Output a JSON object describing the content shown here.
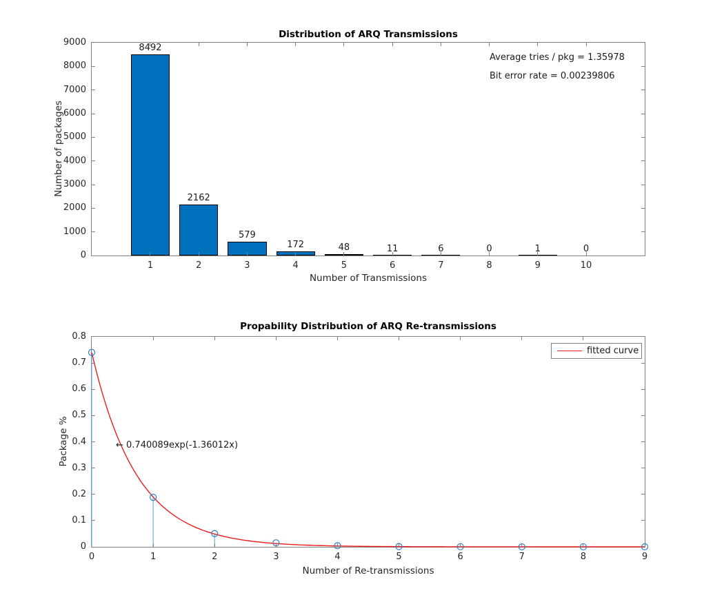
{
  "colors": {
    "bar_fill": "#0072BD",
    "bar_edge": "#000000",
    "stem_line": "#6fb2e4",
    "marker_edge": "#2e7fc9",
    "fit_curve": "#ed1c1c",
    "axis_box": "#7f7f7f",
    "text": "#262626"
  },
  "chart_data": [
    {
      "type": "bar",
      "title": "Distribution of ARQ Transmissions",
      "xlabel": "Number of Transmissions",
      "ylabel": "Number of packages",
      "categories": [
        1,
        2,
        3,
        4,
        5,
        6,
        7,
        8,
        9,
        10
      ],
      "values": [
        8492,
        2162,
        579,
        172,
        48,
        11,
        6,
        0,
        1,
        0
      ],
      "bar_labels": [
        "8492",
        "2162",
        "579",
        "172",
        "48",
        "11",
        "6",
        "0",
        "1",
        "0"
      ],
      "bar_width": 0.8,
      "xlim": [
        -0.21,
        11.21
      ],
      "ylim": [
        0,
        9000
      ],
      "yticks": [
        0,
        1000,
        2000,
        3000,
        4000,
        5000,
        6000,
        7000,
        8000,
        9000
      ],
      "xticks": [
        1,
        2,
        3,
        4,
        5,
        6,
        7,
        8,
        9,
        10
      ],
      "grid": false,
      "annotations": [
        "Average tries / pkg = 1.35978",
        "Bit error rate = 0.00239806"
      ]
    },
    {
      "type": "stem",
      "title": "Propability Distribution of ARQ Re-transmissions",
      "xlabel": "Number of Re-transmissions",
      "ylabel": "Package %",
      "x": [
        0,
        1,
        2,
        3,
        4,
        5,
        6,
        7,
        8,
        9
      ],
      "values": [
        0.7403,
        0.1885,
        0.0505,
        0.015,
        0.0042,
        0.001,
        0.0005,
        0,
        0.0001,
        0
      ],
      "xlim": [
        0,
        9
      ],
      "ylim": [
        0,
        0.8
      ],
      "yticks": [
        0,
        0.1,
        0.2,
        0.3,
        0.4,
        0.5,
        0.6,
        0.7,
        0.8
      ],
      "xticks": [
        0,
        1,
        2,
        3,
        4,
        5,
        6,
        7,
        8,
        9
      ],
      "grid": false,
      "fit": {
        "label": "← 0.740089exp(-1.36012x)",
        "a": 0.740089,
        "b": 1.36012
      },
      "legend": {
        "label": "fitted curve",
        "position": "northeast"
      }
    }
  ]
}
